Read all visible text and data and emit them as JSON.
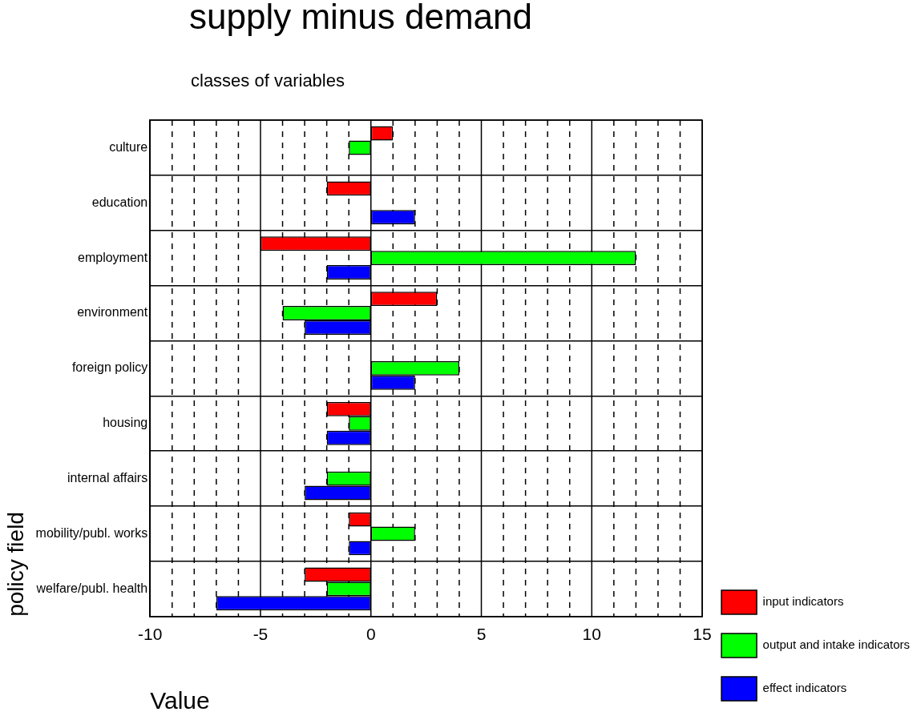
{
  "chart_data": {
    "type": "bar",
    "orientation": "horizontal",
    "title": "supply minus demand",
    "subtitle": "classes of variables",
    "xlabel": "Value",
    "ylabel": "policy field",
    "categories": [
      "culture",
      "education",
      "employment",
      "environment",
      "foreign policy",
      "housing",
      "internal affairs",
      "mobility/publ. works",
      "welfare/publ. health"
    ],
    "series": [
      {
        "name": "input indicators",
        "color": "#ff0000",
        "values": [
          1,
          -2,
          -5,
          3,
          null,
          -2,
          null,
          -1,
          -3
        ]
      },
      {
        "name": "output and intake indicators",
        "color": "#00ff00",
        "values": [
          -1,
          null,
          12,
          -4,
          4,
          -1,
          -2,
          2,
          -2
        ]
      },
      {
        "name": "effect indicators",
        "color": "#0000ff",
        "values": [
          null,
          2,
          -2,
          -3,
          2,
          -2,
          -3,
          -1,
          -7
        ]
      }
    ],
    "xlim": [
      -10,
      15
    ],
    "xticks": [
      -10,
      {
        "value": -9,
        "label": null
      },
      {
        "value": -8,
        "label": null
      },
      {
        "value": -7,
        "label": null
      },
      {
        "value": -6,
        "label": null
      },
      -5,
      {
        "value": -4,
        "label": null
      },
      {
        "value": -3,
        "label": null
      },
      {
        "value": -2,
        "label": null
      },
      {
        "value": -1,
        "label": null
      },
      0,
      {
        "value": 1,
        "label": null
      },
      {
        "value": 2,
        "label": null
      },
      {
        "value": 3,
        "label": null
      },
      {
        "value": 4,
        "label": null
      },
      5,
      {
        "value": 6,
        "label": null
      },
      {
        "value": 7,
        "label": null
      },
      {
        "value": 8,
        "label": null
      },
      {
        "value": 9,
        "label": null
      },
      10,
      {
        "value": 11,
        "label": null
      },
      {
        "value": 12,
        "label": null
      },
      {
        "value": 13,
        "label": null
      },
      {
        "value": 14,
        "label": null
      },
      15
    ],
    "grid": true,
    "legend": "bottom right"
  }
}
